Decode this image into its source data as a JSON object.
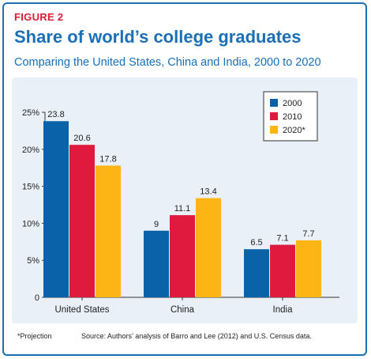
{
  "header": {
    "figure_label": "FIGURE 2",
    "title": "Share of world’s college graduates",
    "subtitle": "Comparing the United States, China and India, 2000 to 2020"
  },
  "footer": {
    "footnote": "*Projection",
    "source": "Source: Authors’ analysis of Barro and Lee (2012) and U.S. Census data."
  },
  "colors": {
    "accent_blue": "#1a6fb5",
    "accent_red": "#d62036",
    "panel_bg": "#e9f0f8"
  },
  "chart_data": {
    "type": "bar",
    "categories": [
      "United States",
      "China",
      "India"
    ],
    "series": [
      {
        "name": "2000",
        "color": "#0a63a8",
        "values": [
          23.8,
          9,
          6.5
        ],
        "labels": [
          "23.8",
          "9",
          "6.5"
        ]
      },
      {
        "name": "2010",
        "color": "#e0193f",
        "values": [
          20.6,
          11.1,
          7.1
        ],
        "labels": [
          "20.6",
          "11.1",
          "7.1"
        ]
      },
      {
        "name": "2020*",
        "color": "#fdb515",
        "values": [
          17.8,
          13.4,
          7.7
        ],
        "labels": [
          "17.8",
          "13.4",
          "7.7"
        ]
      }
    ],
    "ylim": [
      0,
      25
    ],
    "yticks": [
      0,
      5,
      10,
      15,
      20,
      25
    ],
    "ytick_labels": [
      "0",
      "5%",
      "10%",
      "15%",
      "20%",
      "25%"
    ],
    "grid": false,
    "legend_position": "top-right"
  }
}
